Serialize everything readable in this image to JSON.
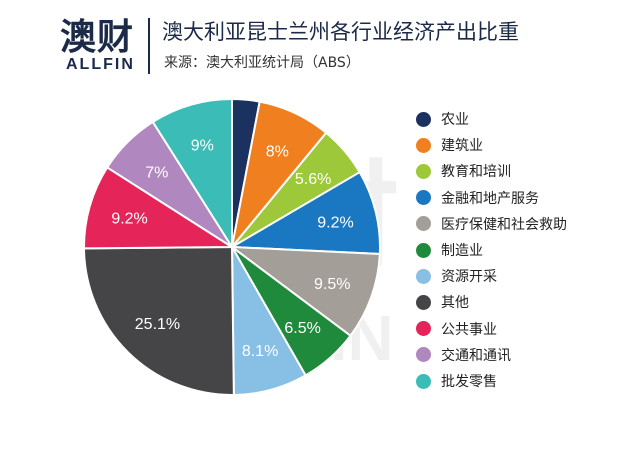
{
  "brand": {
    "name_cn": "澳财",
    "name_en": "ALLFIN",
    "color": "#1b2a48"
  },
  "watermark": {
    "text": "澳财 ALLFIN"
  },
  "chart_data": {
    "type": "pie",
    "title": "澳大利亚昆士兰州各行业经济产出比重",
    "subtitle": "来源：澳大利亚统计局（ABS）",
    "legend_position": "right",
    "slices": [
      {
        "name": "农业",
        "value": 3.0,
        "label": "",
        "color": "#1b3260"
      },
      {
        "name": "建筑业",
        "value": 8.0,
        "label": "8%",
        "color": "#f0801f"
      },
      {
        "name": "教育和培训",
        "value": 5.6,
        "label": "5.6%",
        "color": "#9cc83a"
      },
      {
        "name": "金融和地产服务",
        "value": 9.2,
        "label": "9.2%",
        "color": "#1a78c2"
      },
      {
        "name": "医疗保健和社会救助",
        "value": 9.5,
        "label": "9.5%",
        "color": "#a39e98"
      },
      {
        "name": "制造业",
        "value": 6.5,
        "label": "6.5%",
        "color": "#1f8a3c"
      },
      {
        "name": "资源开采",
        "value": 8.1,
        "label": "8.1%",
        "color": "#88bfe5"
      },
      {
        "name": "其他",
        "value": 25.1,
        "label": "25.1%",
        "color": "#454548"
      },
      {
        "name": "公共事业",
        "value": 9.2,
        "label": "9.2%",
        "color": "#e5245a"
      },
      {
        "name": "交通和通讯",
        "value": 7.0,
        "label": "7%",
        "color": "#b087be"
      },
      {
        "name": "批发零售",
        "value": 9.0,
        "label": "9%",
        "color": "#3bbcb6"
      }
    ]
  }
}
